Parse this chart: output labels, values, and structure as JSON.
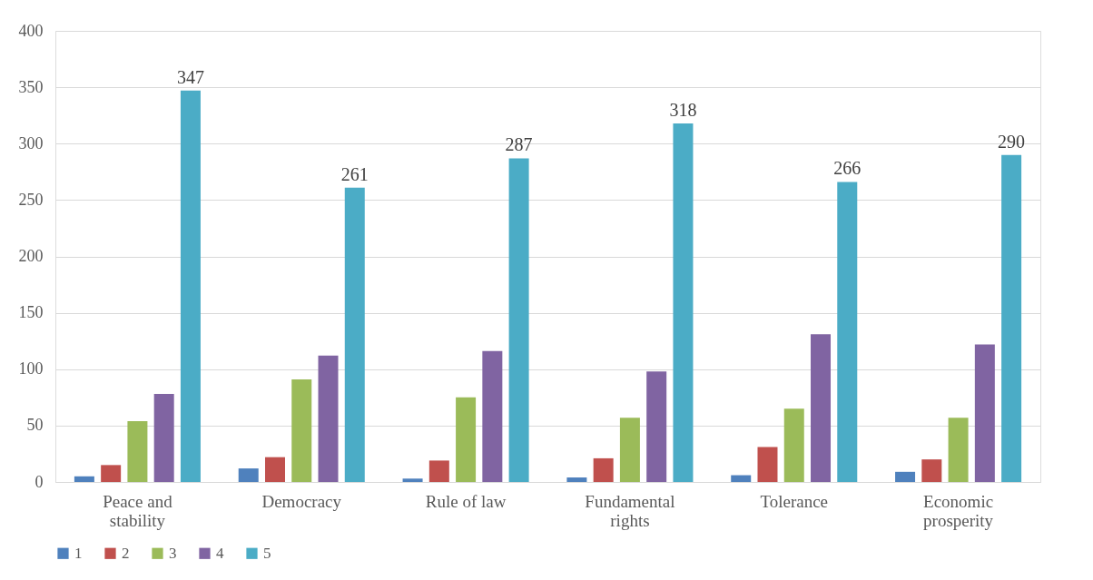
{
  "chart_data": {
    "type": "bar",
    "categories": [
      "Peace and stability",
      "Democracy",
      "Rule of law",
      "Fundamental rights",
      "Tolerance",
      "Economic prosperity"
    ],
    "series": [
      {
        "name": "1",
        "color": "#4f81bd",
        "values": [
          5,
          12,
          3,
          4,
          6,
          9
        ]
      },
      {
        "name": "2",
        "color": "#c0504d",
        "values": [
          15,
          22,
          19,
          21,
          31,
          20
        ]
      },
      {
        "name": "3",
        "color": "#9bbb59",
        "values": [
          54,
          91,
          75,
          57,
          65,
          57
        ]
      },
      {
        "name": "4",
        "color": "#8064a2",
        "values": [
          78,
          112,
          116,
          98,
          131,
          122
        ]
      },
      {
        "name": "5",
        "color": "#4bacc6",
        "values": [
          347,
          261,
          287,
          318,
          266,
          290
        ],
        "value_labels": [
          "347",
          "261",
          "287",
          "318",
          "266",
          "290"
        ]
      }
    ],
    "ylim": [
      0,
      400
    ],
    "yticks": [
      0,
      50,
      100,
      150,
      200,
      250,
      300,
      350,
      400
    ],
    "grid": "y",
    "legend": "bottom"
  }
}
